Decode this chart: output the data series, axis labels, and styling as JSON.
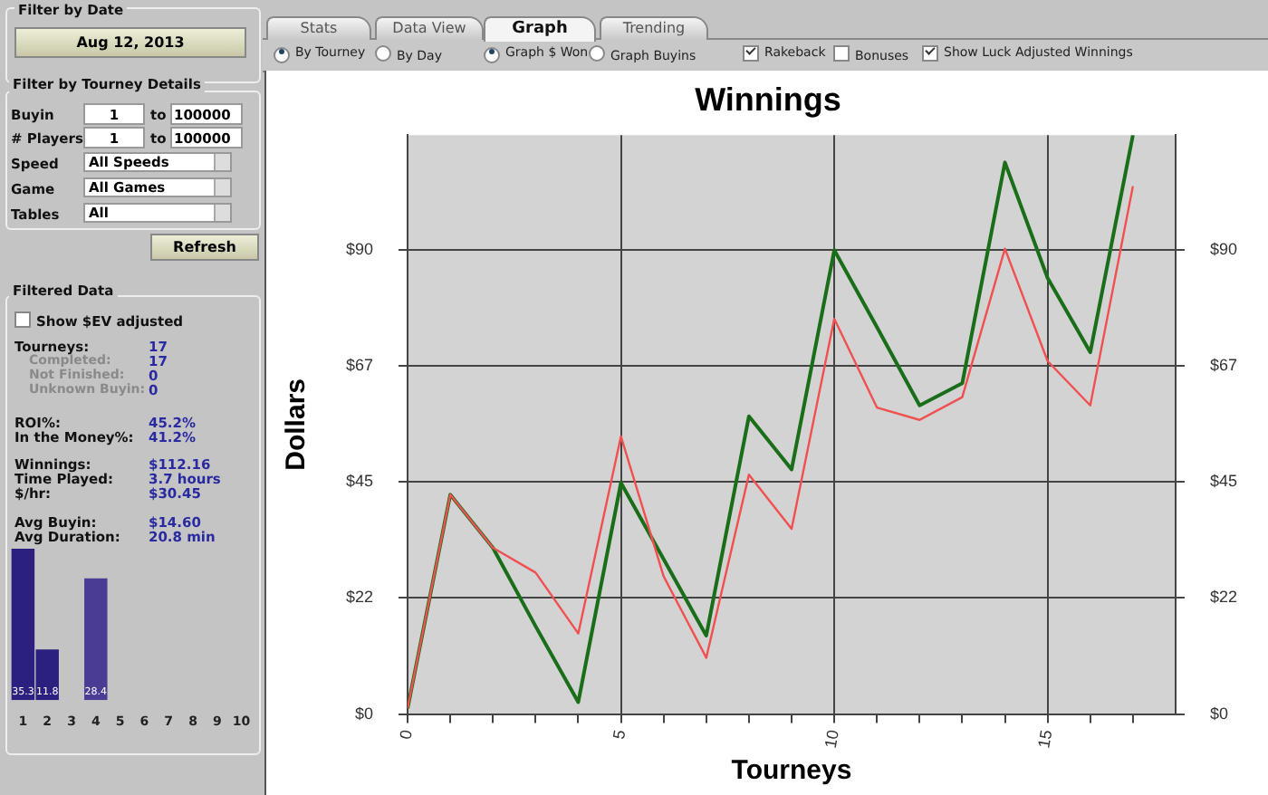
{
  "chart_data": [
    {
      "type": "other",
      "title": "Filter by Date",
      "annotations": [
        "Aug 12, 2013"
      ]
    },
    {
      "type": "other",
      "title": "Filter by Tourney Details",
      "annotations": [
        "Buyin",
        "1",
        "to",
        "100000",
        "# Players",
        "1",
        "to",
        "100000",
        "Speed",
        "All Speeds",
        "Game",
        "All Games",
        "Tables",
        "All",
        "Refresh"
      ]
    },
    {
      "type": "other",
      "title": "Filtered Data",
      "annotations": [
        "Show $EV adjusted",
        "Tourneys:",
        "17",
        "Completed:",
        "17",
        "Not Finished:",
        "0",
        "Unknown Buyin:",
        "0",
        "ROI%:",
        "45.2%",
        "In the Money%:",
        "41.2%",
        "Winnings:",
        "$112.16",
        "Time Played:",
        "3.7 hours",
        "$/hr:",
        "$30.45",
        "Avg Buyin:",
        "$14.60",
        "Avg Duration:",
        "20.8 min"
      ]
    },
    {
      "type": "bar",
      "categories": [
        "1",
        "2",
        "3",
        "4",
        "5",
        "6",
        "7",
        "8",
        "9",
        "10"
      ],
      "values": [
        35.3,
        11.8,
        0,
        28.4,
        0,
        0,
        0,
        0,
        0,
        0
      ],
      "value_labels": [
        "35.3",
        "11.8",
        null,
        "28.4",
        null,
        null,
        null,
        null,
        null,
        null
      ],
      "colors": [
        "#2b2080",
        "#2b2080",
        "#2b2080",
        "#4a3c94",
        "#2b2080",
        "#2b2080",
        "#2b2080",
        "#2b2080",
        "#2b2080",
        "#2b2080"
      ],
      "tick_labels": "x"
    },
    {
      "type": "other",
      "annotations": [
        "Stats",
        "Data View",
        "Graph",
        "Trending",
        "By Tourney",
        "By Day",
        "Graph $ Won",
        "Graph Buyins",
        "Rakeback",
        "Bonuses",
        "Show Luck Adjusted Winnings"
      ]
    },
    {
      "type": "line",
      "title": "Winnings",
      "xlabel": "Tourneys",
      "ylabel": "Dollars",
      "x": [
        0,
        1,
        2,
        3,
        4,
        5,
        6,
        7,
        8,
        9,
        10,
        11,
        12,
        13,
        14,
        15,
        16,
        17
      ],
      "series": [
        {
          "color": "#f05050",
          "values": [
            1.1,
            42.5,
            32.2,
            27.4,
            15.6,
            53.8,
            26.7,
            10.9,
            46.4,
            35.9,
            76.6,
            59.4,
            57.0,
            61.4,
            90.2,
            68.4,
            59.8,
            102.3
          ]
        },
        {
          "color": "#1a6e1a",
          "values": [
            1.1,
            42.5,
            32.2,
            17,
            2.3,
            44.8,
            30,
            15.2,
            57.7,
            47.4,
            89.9,
            75,
            59.8,
            64.1,
            106.9,
            84.5,
            70.1,
            112.2
          ]
        }
      ],
      "xlim": [
        0,
        18
      ],
      "xticks": [
        0,
        {
          "value": 1,
          "label": null
        },
        {
          "value": 2,
          "label": null
        },
        {
          "value": 3,
          "label": null
        },
        {
          "value": 4,
          "label": null
        },
        5,
        {
          "value": 6,
          "label": null
        },
        {
          "value": 7,
          "label": null
        },
        {
          "value": 8,
          "label": null
        },
        {
          "value": 9,
          "label": null
        },
        10,
        {
          "value": 11,
          "label": null
        },
        {
          "value": 12,
          "label": null
        },
        {
          "value": 13,
          "label": null
        },
        {
          "value": 14,
          "label": null
        },
        15,
        {
          "value": 16,
          "label": null
        },
        {
          "value": 17,
          "label": null
        }
      ],
      "ylim": [
        0,
        112.2
      ],
      "yticks": [
        {
          "value": 0,
          "label": "$0"
        },
        {
          "value": 22.5,
          "label": "$22"
        },
        {
          "value": 45,
          "label": "$45"
        },
        {
          "value": 67.5,
          "label": "$67"
        },
        {
          "value": 90,
          "label": "$90"
        }
      ],
      "y2lim": [
        0,
        112.2
      ],
      "y2ticks": [
        {
          "value": 0,
          "label": "$0"
        },
        {
          "value": 22.5,
          "label": "$22"
        },
        {
          "value": 45,
          "label": "$45"
        },
        {
          "value": 67.5,
          "label": "$67"
        },
        {
          "value": 90,
          "label": "$90"
        }
      ],
      "grid": true,
      "legend": false,
      "marker": "none",
      "line_style": "solid"
    }
  ]
}
